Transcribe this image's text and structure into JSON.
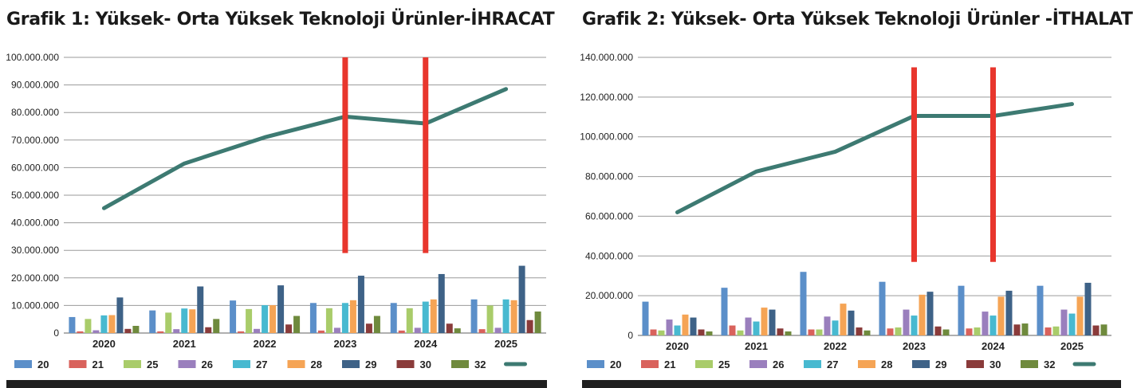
{
  "chart_data": [
    {
      "type": "bar",
      "title": "Grafik 1: Yüksek- Orta Yüksek Teknoloji Ürünler-İHRACAT",
      "categories": [
        "2020",
        "2021",
        "2022",
        "2023",
        "2024",
        "2025"
      ],
      "ylim": [
        0,
        100000000
      ],
      "yticks": [
        "0",
        "10.000.000",
        "20.000.000",
        "30.000.000",
        "40.000.000",
        "50.000.000",
        "60.000.000",
        "70.000.000",
        "80.000.000",
        "90.000.000",
        "100.000.000"
      ],
      "grid": true,
      "legend_position": "bottom",
      "series": [
        {
          "name": "20",
          "color": "#5b8fc9",
          "values": [
            5800000,
            8200000,
            11800000,
            10900000,
            10900000,
            12200000
          ]
        },
        {
          "name": "21",
          "color": "#d9625c",
          "values": [
            600000,
            600000,
            600000,
            900000,
            900000,
            1400000
          ]
        },
        {
          "name": "25",
          "color": "#a9cc6a",
          "values": [
            5100000,
            7400000,
            8700000,
            9000000,
            9000000,
            10000000
          ]
        },
        {
          "name": "26",
          "color": "#9a7fbd",
          "values": [
            1000000,
            1400000,
            1500000,
            1900000,
            1900000,
            1900000
          ]
        },
        {
          "name": "27",
          "color": "#48b9d0",
          "values": [
            6400000,
            8900000,
            10100000,
            10900000,
            11400000,
            12200000
          ]
        },
        {
          "name": "28",
          "color": "#f5a455",
          "values": [
            6500000,
            8600000,
            10100000,
            11900000,
            12200000,
            11900000
          ]
        },
        {
          "name": "29",
          "color": "#3e6287",
          "values": [
            12900000,
            16900000,
            17300000,
            20800000,
            21400000,
            24400000
          ]
        },
        {
          "name": "30",
          "color": "#8a3b3a",
          "values": [
            1500000,
            2100000,
            3100000,
            3400000,
            3400000,
            4700000
          ]
        },
        {
          "name": "32",
          "color": "#6f8a3d",
          "values": [
            2600000,
            5100000,
            6200000,
            6200000,
            1700000,
            7800000
          ]
        }
      ],
      "line": {
        "color": "#3d7a72",
        "values": [
          45300000,
          61500000,
          71000000,
          78500000,
          76000000,
          88500000
        ]
      },
      "markers": {
        "color": "#e8362d",
        "years": [
          "2023",
          "2024"
        ],
        "range": [
          29000000,
          100000000
        ]
      }
    },
    {
      "type": "bar",
      "title": "Grafik 2: Yüksek- Orta Yüksek Teknoloji Ürünler -İTHALAT",
      "categories": [
        "2020",
        "2021",
        "2022",
        "2023",
        "2024",
        "2025"
      ],
      "ylim": [
        0,
        140000000
      ],
      "yticks": [
        "0",
        "20.000.000",
        "40.000.000",
        "60.000.000",
        "80.000.000",
        "100.000.000",
        "120.000.000",
        "140.000.000"
      ],
      "grid": true,
      "legend_position": "bottom",
      "series": [
        {
          "name": "20",
          "color": "#5b8fc9",
          "values": [
            17000000,
            24000000,
            32000000,
            27000000,
            25000000,
            25000000
          ]
        },
        {
          "name": "21",
          "color": "#d9625c",
          "values": [
            3000000,
            5000000,
            3000000,
            3500000,
            3500000,
            4000000
          ]
        },
        {
          "name": "25",
          "color": "#a9cc6a",
          "values": [
            2500000,
            2500000,
            3000000,
            4000000,
            4000000,
            4500000
          ]
        },
        {
          "name": "26",
          "color": "#9a7fbd",
          "values": [
            8000000,
            9000000,
            9500000,
            13000000,
            12000000,
            13000000
          ]
        },
        {
          "name": "27",
          "color": "#48b9d0",
          "values": [
            5000000,
            7000000,
            7500000,
            10000000,
            10000000,
            11000000
          ]
        },
        {
          "name": "28",
          "color": "#f5a455",
          "values": [
            10500000,
            14000000,
            16000000,
            20500000,
            19500000,
            19500000
          ]
        },
        {
          "name": "29",
          "color": "#3e6287",
          "values": [
            9000000,
            13000000,
            12500000,
            22000000,
            22500000,
            26500000
          ]
        },
        {
          "name": "30",
          "color": "#8a3b3a",
          "values": [
            3000000,
            3500000,
            4000000,
            4500000,
            5500000,
            5000000
          ]
        },
        {
          "name": "32",
          "color": "#6f8a3d",
          "values": [
            2000000,
            2000000,
            2500000,
            3000000,
            6000000,
            5500000
          ]
        }
      ],
      "line": {
        "color": "#3d7a72",
        "values": [
          62000000,
          82500000,
          92500000,
          110500000,
          110500000,
          116500000
        ]
      },
      "markers": {
        "color": "#e8362d",
        "years": [
          "2023",
          "2024"
        ],
        "range": [
          37000000,
          135000000
        ]
      }
    }
  ]
}
